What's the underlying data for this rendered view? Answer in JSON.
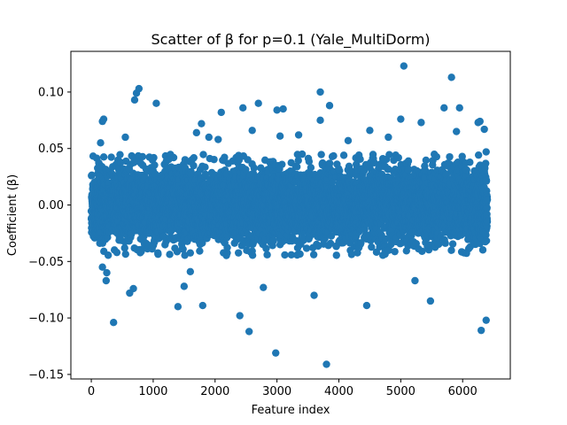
{
  "chart_data": {
    "type": "scatter",
    "title": "Scatter of β for p=0.1 (Yale_MultiDorm)",
    "xlabel": "Feature index",
    "ylabel": "Coefficient (β)",
    "xlim": [
      -330,
      6770
    ],
    "ylim": [
      -0.154,
      0.136
    ],
    "xticks": [
      0,
      1000,
      2000,
      3000,
      4000,
      5000,
      6000
    ],
    "xtick_labels": [
      "0",
      "1000",
      "2000",
      "3000",
      "4000",
      "5000",
      "6000"
    ],
    "yticks": [
      -0.15,
      -0.1,
      -0.05,
      0.0,
      0.05,
      0.1
    ],
    "ytick_labels": [
      "−0.15",
      "−0.10",
      "−0.05",
      "0.00",
      "0.05",
      "0.10"
    ],
    "grid": false,
    "marker_color": "#1f77b4",
    "n_points": 6400,
    "noise_model": {
      "type": "normal",
      "sd": 0.016,
      "clip": 0.045
    },
    "outliers": {
      "x": [
        5050,
        3800,
        5820,
        2980,
        3000,
        2700,
        2550,
        2450,
        6300,
        6380,
        360,
        5480,
        2400,
        1800,
        4450,
        3700,
        1400,
        5950,
        6350,
        3850,
        250,
        240,
        3100,
        2780,
        3600,
        620,
        1500,
        680,
        2100,
        1900,
        4800,
        4500,
        200,
        180,
        150,
        5330,
        5230,
        1780,
        770,
        730,
        700,
        1050,
        180,
        550,
        5000,
        3700,
        4150,
        6250,
        3350,
        3050,
        5700,
        2600,
        2050,
        1700,
        1600,
        5900,
        6280,
        6380
      ],
      "y": [
        0.123,
        -0.141,
        0.113,
        -0.131,
        0.084,
        0.09,
        -0.112,
        0.086,
        -0.111,
        -0.102,
        -0.104,
        -0.085,
        -0.098,
        -0.089,
        -0.089,
        0.1,
        -0.09,
        0.086,
        0.067,
        0.088,
        -0.06,
        -0.067,
        0.085,
        -0.073,
        -0.08,
        -0.078,
        -0.072,
        -0.074,
        0.082,
        0.06,
        0.06,
        0.066,
        0.076,
        0.074,
        0.055,
        0.073,
        -0.067,
        0.072,
        0.103,
        0.099,
        0.093,
        0.09,
        -0.055,
        0.06,
        0.076,
        0.075,
        0.057,
        0.073,
        0.062,
        0.061,
        0.086,
        0.066,
        0.058,
        0.064,
        -0.059,
        0.065,
        0.074,
        0.047
      ]
    }
  }
}
